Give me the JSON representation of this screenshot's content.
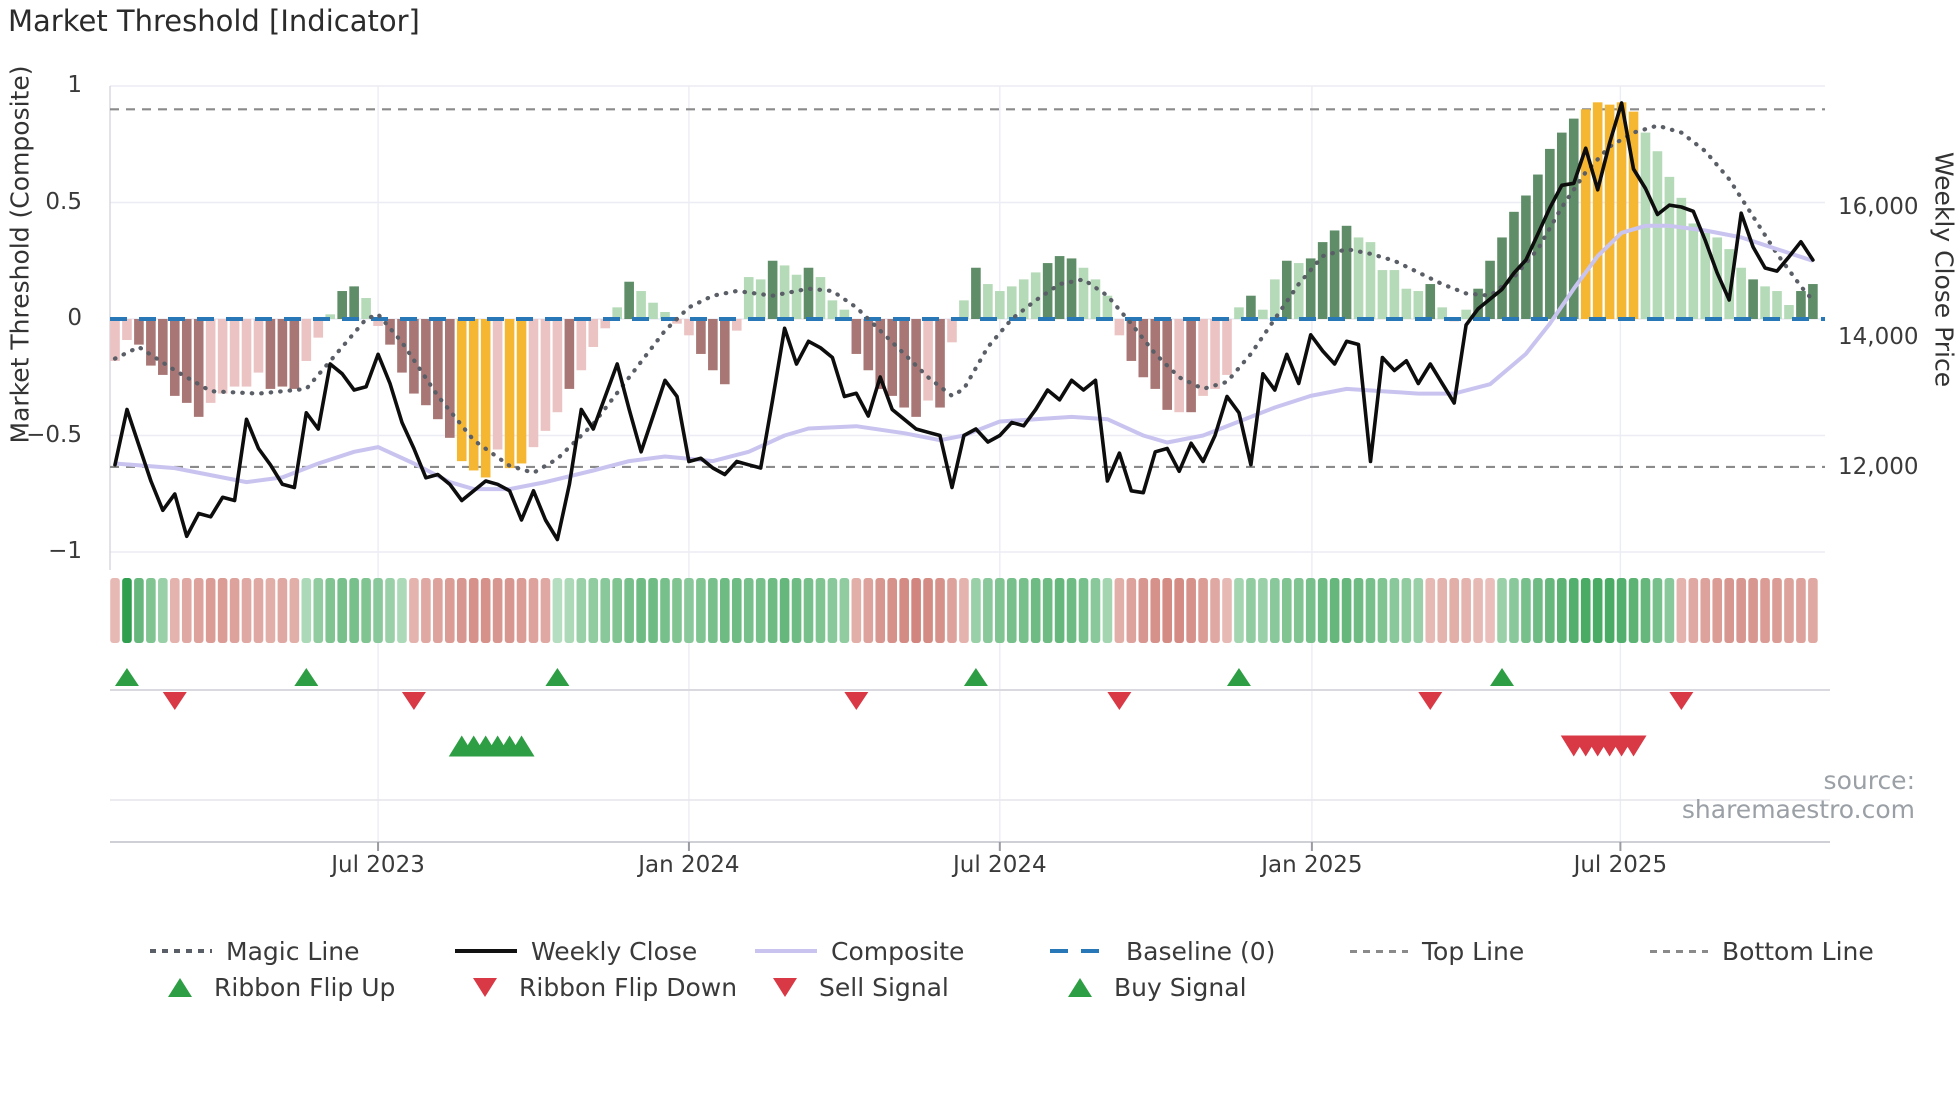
{
  "title": "Market Threshold [Indicator]",
  "source_text": "source: sharemaestro.com",
  "axes": {
    "left": {
      "title": "Market Threshold (Composite)",
      "ticks": [
        {
          "label": "1",
          "value": 1
        },
        {
          "label": "0.5",
          "value": 0.5
        },
        {
          "label": "0",
          "value": 0
        },
        {
          "label": "−0.5",
          "value": -0.5
        },
        {
          "label": "−1",
          "value": -1
        }
      ]
    },
    "right": {
      "title": "Weekly Close Price",
      "ticks": [
        {
          "label": "16,000",
          "value": 16000
        },
        {
          "label": "14,000",
          "value": 14000
        },
        {
          "label": "12,000",
          "value": 12000
        }
      ]
    },
    "x": {
      "ticks": [
        {
          "label": "Jul 2023",
          "week_index": 22
        },
        {
          "label": "Jan 2024",
          "week_index": 48
        },
        {
          "label": "Jul 2024",
          "week_index": 74
        },
        {
          "label": "Jan 2025",
          "week_index": 100.1
        },
        {
          "label": "Jul 2025",
          "week_index": 125.9
        }
      ]
    }
  },
  "legend": {
    "row1": [
      {
        "swatch": "dotted-gray",
        "label": "Magic Line"
      },
      {
        "swatch": "solid-black",
        "label": "Weekly Close"
      },
      {
        "swatch": "solid-lavender",
        "label": "Composite"
      },
      {
        "swatch": "dashed-blue",
        "label": "Baseline (0)"
      },
      {
        "swatch": "dashed-gray",
        "label": "Top Line"
      },
      {
        "swatch": "dashed-gray",
        "label": "Bottom Line"
      }
    ],
    "row2": [
      {
        "swatch": "tri-up-green",
        "label": "Ribbon Flip Up"
      },
      {
        "swatch": "tri-down-red",
        "label": "Ribbon Flip Down"
      },
      {
        "swatch": "tri-down-red",
        "label": "Sell Signal"
      },
      {
        "swatch": "tri-up-green",
        "label": "Buy Signal"
      }
    ]
  },
  "colors": {
    "bar_light_red": "#EAC3C2",
    "bar_dark_red": "#A87775",
    "bar_light_green": "#B5DAB8",
    "bar_dark_green": "#5E8D67",
    "bar_yellow": "#F5B731",
    "weekly_close": "#0d0d0d",
    "magic_line": "#5A5E66",
    "composite_line": "#C8C4EF",
    "baseline_blue": "#2878B8",
    "threshold_gray": "#8A8A8A",
    "flip_up_green": "#2E9E44",
    "signal_red": "#D93845",
    "ribbon_green_strong": "#2F9E4F",
    "ribbon_green_light": "#E2F2E4",
    "ribbon_red_strong": "#C4685F",
    "ribbon_red_light": "#F6DCD9",
    "grid": "#ECECF4",
    "axis_line": "#CFCFD6",
    "source_gray": "#9AA0A6"
  },
  "chart_data": {
    "type": "combo",
    "x_unit": "weekly",
    "num_weeks": 143,
    "composite_ylim": [
      -1,
      1
    ],
    "top_line": 0.9,
    "bottom_line": -0.635,
    "baseline": 0,
    "grid": "light horizontal at composite ticks, light vertical at date ticks",
    "legend_position": "bottom, two rows",
    "composite_bars": {
      "style_key": {
        "L": "light_red",
        "D": "dark_red",
        "G": "light_green",
        "F": "dark_green",
        "Y": "yellow"
      },
      "styles": "LLDDDDDDLLLLLDDDLLGFFGLDDDDDDYYYLYYLLLDLLLGFGGGLLDDDLGGFGGFGGGDDDDDDLDLGFGGGGGFFFGGGLDDDDLDLLLGFGGFGFFFFGGGGGGFGLGFFFFFFFFFYYYYYGGGGGGGGGFGGGFF",
      "values": [
        -0.18,
        -0.09,
        -0.11,
        -0.2,
        -0.24,
        -0.33,
        -0.36,
        -0.42,
        -0.36,
        -0.32,
        -0.29,
        -0.29,
        -0.23,
        -0.3,
        -0.29,
        -0.3,
        -0.18,
        -0.08,
        0.02,
        0.12,
        0.14,
        0.09,
        -0.03,
        -0.11,
        -0.23,
        -0.32,
        -0.37,
        -0.43,
        -0.51,
        -0.61,
        -0.65,
        -0.68,
        -0.56,
        -0.64,
        -0.62,
        -0.55,
        -0.48,
        -0.4,
        -0.3,
        -0.22,
        -0.12,
        -0.04,
        0.05,
        0.16,
        0.12,
        0.07,
        0.03,
        -0.02,
        -0.07,
        -0.15,
        -0.22,
        -0.28,
        -0.05,
        0.18,
        0.17,
        0.25,
        0.23,
        0.19,
        0.22,
        0.18,
        0.08,
        0.04,
        -0.15,
        -0.22,
        -0.3,
        -0.33,
        -0.38,
        -0.42,
        -0.35,
        -0.38,
        -0.1,
        0.08,
        0.22,
        0.15,
        0.12,
        0.14,
        0.17,
        0.2,
        0.24,
        0.27,
        0.26,
        0.22,
        0.17,
        0.1,
        -0.07,
        -0.18,
        -0.25,
        -0.3,
        -0.39,
        -0.4,
        -0.4,
        -0.33,
        -0.3,
        -0.24,
        0.05,
        0.1,
        0.04,
        0.17,
        0.25,
        0.24,
        0.26,
        0.33,
        0.38,
        0.4,
        0.35,
        0.33,
        0.21,
        0.21,
        0.13,
        0.12,
        0.15,
        0.05,
        -0.01,
        0.04,
        0.13,
        0.25,
        0.35,
        0.46,
        0.53,
        0.62,
        0.73,
        0.8,
        0.86,
        0.9,
        0.93,
        0.92,
        0.93,
        0.89,
        0.8,
        0.72,
        0.61,
        0.52,
        0.41,
        0.37,
        0.35,
        0.3,
        0.22,
        0.17,
        0.14,
        0.12,
        0.06,
        0.12,
        0.15
      ]
    },
    "weekly_close": [
      12050,
      12900,
      12350,
      11800,
      11350,
      11600,
      10950,
      11300,
      11250,
      11550,
      11500,
      12750,
      12300,
      12050,
      11750,
      11700,
      12850,
      12600,
      13600,
      13450,
      13200,
      13250,
      13750,
      13300,
      12700,
      12300,
      11850,
      11900,
      11750,
      11500,
      11650,
      11800,
      11750,
      11650,
      11200,
      11650,
      11200,
      10900,
      11750,
      12900,
      12600,
      13100,
      13600,
      12900,
      12250,
      12800,
      13350,
      13100,
      12100,
      12150,
      12000,
      11900,
      12100,
      12050,
      12000,
      13050,
      14150,
      13600,
      13950,
      13850,
      13700,
      13100,
      13150,
      12800,
      13400,
      12900,
      12750,
      12600,
      12550,
      12500,
      11700,
      12500,
      12600,
      12400,
      12500,
      12700,
      12650,
      12900,
      13200,
      13050,
      13350,
      13200,
      13350,
      11800,
      12230,
      11650,
      11620,
      12250,
      12300,
      11950,
      12380,
      12100,
      12500,
      13100,
      12850,
      12050,
      13450,
      13200,
      13750,
      13300,
      14050,
      13800,
      13600,
      13950,
      13900,
      12100,
      13700,
      13500,
      13650,
      13300,
      13600,
      13300,
      13000,
      14200,
      14450,
      14600,
      14750,
      15000,
      15200,
      15600,
      16000,
      16350,
      16380,
      16920,
      16280,
      17000,
      17615,
      16600,
      16300,
      15900,
      16045,
      16015,
      15950,
      15500,
      15000,
      14585,
      15920,
      15400,
      15077,
      15030,
      15250,
      15480,
      15200
    ],
    "magic_line_keypoints": [
      [
        0,
        -0.17
      ],
      [
        2,
        -0.12
      ],
      [
        5,
        -0.22
      ],
      [
        8,
        -0.31
      ],
      [
        12,
        -0.32
      ],
      [
        16,
        -0.3
      ],
      [
        19,
        -0.12
      ],
      [
        21,
        0.0
      ],
      [
        22,
        0.02
      ],
      [
        24,
        -0.1
      ],
      [
        27,
        -0.33
      ],
      [
        30,
        -0.52
      ],
      [
        33,
        -0.63
      ],
      [
        35,
        -0.66
      ],
      [
        37,
        -0.6
      ],
      [
        40,
        -0.45
      ],
      [
        43,
        -0.25
      ],
      [
        46,
        -0.05
      ],
      [
        48,
        0.05
      ],
      [
        50,
        0.1
      ],
      [
        52,
        0.12
      ],
      [
        55,
        0.1
      ],
      [
        58,
        0.13
      ],
      [
        60,
        0.12
      ],
      [
        62,
        0.05
      ],
      [
        64,
        -0.05
      ],
      [
        66,
        -0.15
      ],
      [
        68,
        -0.25
      ],
      [
        70,
        -0.33
      ],
      [
        71,
        -0.3
      ],
      [
        73,
        -0.12
      ],
      [
        75,
        0.0
      ],
      [
        77,
        0.08
      ],
      [
        79,
        0.15
      ],
      [
        81,
        0.17
      ],
      [
        83,
        0.1
      ],
      [
        85,
        -0.02
      ],
      [
        87,
        -0.15
      ],
      [
        89,
        -0.25
      ],
      [
        91,
        -0.3
      ],
      [
        93,
        -0.27
      ],
      [
        95,
        -0.15
      ],
      [
        97,
        0.0
      ],
      [
        99,
        0.15
      ],
      [
        101,
        0.27
      ],
      [
        103,
        0.3
      ],
      [
        105,
        0.28
      ],
      [
        107,
        0.25
      ],
      [
        109,
        0.2
      ],
      [
        111,
        0.15
      ],
      [
        113,
        0.11
      ],
      [
        115,
        0.1
      ],
      [
        117,
        0.18
      ],
      [
        119,
        0.3
      ],
      [
        121,
        0.48
      ],
      [
        123,
        0.63
      ],
      [
        125,
        0.74
      ],
      [
        127,
        0.8
      ],
      [
        129,
        0.83
      ],
      [
        131,
        0.8
      ],
      [
        133,
        0.72
      ],
      [
        135,
        0.6
      ],
      [
        137,
        0.44
      ],
      [
        139,
        0.28
      ],
      [
        141,
        0.14
      ],
      [
        142,
        0.08
      ]
    ],
    "composite_line_keypoints": [
      [
        0,
        -0.62
      ],
      [
        5,
        -0.64
      ],
      [
        8,
        -0.67
      ],
      [
        11,
        -0.7
      ],
      [
        14,
        -0.68
      ],
      [
        17,
        -0.62
      ],
      [
        20,
        -0.57
      ],
      [
        22,
        -0.55
      ],
      [
        25,
        -0.62
      ],
      [
        28,
        -0.7
      ],
      [
        30,
        -0.73
      ],
      [
        33,
        -0.73
      ],
      [
        36,
        -0.7
      ],
      [
        40,
        -0.65
      ],
      [
        43,
        -0.61
      ],
      [
        46,
        -0.59
      ],
      [
        48,
        -0.6
      ],
      [
        50,
        -0.61
      ],
      [
        53,
        -0.57
      ],
      [
        56,
        -0.5
      ],
      [
        58,
        -0.47
      ],
      [
        62,
        -0.46
      ],
      [
        66,
        -0.49
      ],
      [
        69,
        -0.52
      ],
      [
        71,
        -0.5
      ],
      [
        74,
        -0.44
      ],
      [
        77,
        -0.43
      ],
      [
        80,
        -0.42
      ],
      [
        83,
        -0.43
      ],
      [
        86,
        -0.5
      ],
      [
        88,
        -0.53
      ],
      [
        91,
        -0.5
      ],
      [
        94,
        -0.44
      ],
      [
        97,
        -0.38
      ],
      [
        100,
        -0.33
      ],
      [
        103,
        -0.3
      ],
      [
        106,
        -0.31
      ],
      [
        109,
        -0.32
      ],
      [
        112,
        -0.32
      ],
      [
        115,
        -0.28
      ],
      [
        118,
        -0.15
      ],
      [
        120,
        -0.02
      ],
      [
        122,
        0.13
      ],
      [
        124,
        0.27
      ],
      [
        126,
        0.37
      ],
      [
        128,
        0.4
      ],
      [
        130,
        0.4
      ],
      [
        133,
        0.38
      ],
      [
        136,
        0.35
      ],
      [
        139,
        0.3
      ],
      [
        142,
        0.25
      ]
    ],
    "ribbon": [
      -0.3,
      1.0,
      0.7,
      0.55,
      0.4,
      -0.35,
      -0.45,
      -0.5,
      -0.55,
      -0.55,
      -0.5,
      -0.45,
      -0.45,
      -0.4,
      -0.45,
      -0.4,
      0.3,
      0.45,
      0.55,
      0.6,
      0.6,
      0.55,
      0.5,
      0.4,
      0.3,
      -0.35,
      -0.45,
      -0.5,
      -0.55,
      -0.6,
      -0.65,
      -0.65,
      -0.6,
      -0.6,
      -0.55,
      -0.5,
      -0.45,
      0.25,
      0.3,
      0.4,
      0.45,
      0.5,
      0.55,
      0.6,
      0.65,
      0.65,
      0.6,
      0.55,
      0.5,
      0.55,
      0.6,
      0.65,
      0.65,
      0.6,
      0.6,
      0.65,
      0.7,
      0.65,
      0.6,
      0.55,
      0.5,
      0.45,
      -0.4,
      -0.5,
      -0.6,
      -0.65,
      -0.7,
      -0.75,
      -0.7,
      -0.65,
      -0.5,
      -0.35,
      0.4,
      0.5,
      0.55,
      0.6,
      0.6,
      0.65,
      0.65,
      0.7,
      0.65,
      0.6,
      0.5,
      0.35,
      -0.4,
      -0.5,
      -0.6,
      -0.65,
      -0.7,
      -0.7,
      -0.65,
      -0.55,
      -0.45,
      -0.3,
      0.35,
      0.45,
      0.4,
      0.5,
      0.55,
      0.55,
      0.6,
      0.65,
      0.7,
      0.7,
      0.65,
      0.6,
      0.55,
      0.5,
      0.45,
      0.4,
      -0.3,
      -0.35,
      -0.4,
      -0.35,
      -0.3,
      -0.25,
      0.4,
      0.5,
      0.6,
      0.65,
      0.7,
      0.75,
      0.8,
      0.85,
      0.85,
      0.85,
      0.8,
      0.75,
      0.7,
      0.6,
      0.5,
      -0.35,
      -0.45,
      -0.5,
      -0.55,
      -0.6,
      -0.6,
      -0.6,
      -0.55,
      -0.55,
      -0.5,
      -0.5,
      -0.45
    ],
    "signals": {
      "ribbon_flip_up_weeks": [
        1,
        16,
        37,
        72,
        94,
        116
      ],
      "ribbon_flip_down_weeks": [
        5,
        25,
        62,
        84,
        110,
        131
      ],
      "buy_signal_weeks": [
        29,
        30,
        31,
        32,
        33,
        34
      ],
      "sell_signal_weeks": [
        122,
        123,
        124,
        125,
        126,
        127
      ]
    }
  }
}
